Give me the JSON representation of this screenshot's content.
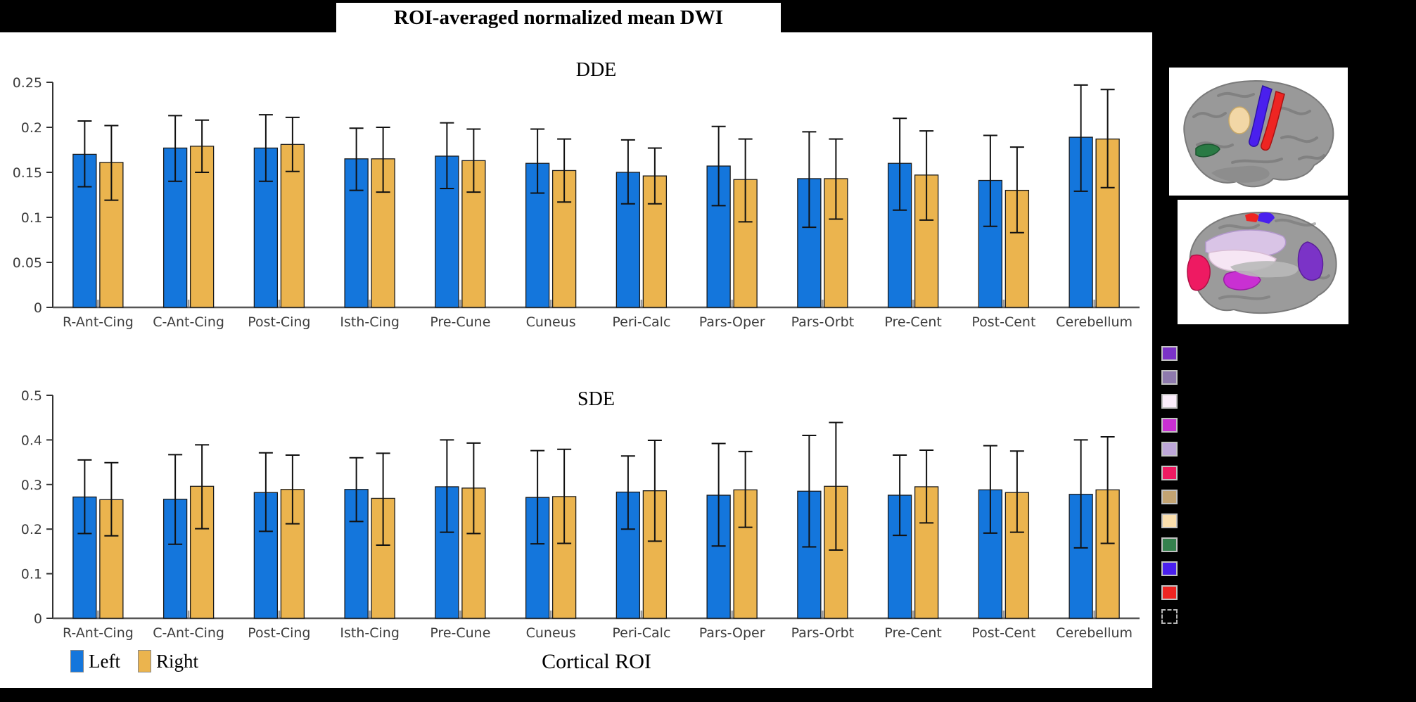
{
  "title": "ROI-averaged normalized mean DWI",
  "xlabel": "Cortical ROI",
  "legend": {
    "items": [
      {
        "label": "Left",
        "color": "#1476DC"
      },
      {
        "label": "Right",
        "color": "#EBB44E"
      }
    ]
  },
  "chart_data": [
    {
      "type": "bar",
      "title": "DDE",
      "ylim": [
        0,
        0.25
      ],
      "yticks": [
        0,
        0.05,
        0.1,
        0.15,
        0.2,
        0.25
      ],
      "categories": [
        "R-Ant-Cing",
        "C-Ant-Cing",
        "Post-Cing",
        "Isth-Cing",
        "Pre-Cune",
        "Cuneus",
        "Peri-Calc",
        "Pars-Oper",
        "Pars-Orbt",
        "Pre-Cent",
        "Post-Cent",
        "Cerebellum"
      ],
      "series": [
        {
          "name": "Left",
          "color": "#1476DC",
          "values": [
            0.17,
            0.177,
            0.177,
            0.165,
            0.168,
            0.16,
            0.15,
            0.157,
            0.143,
            0.16,
            0.141,
            0.189
          ],
          "upper": [
            0.207,
            0.213,
            0.214,
            0.199,
            0.205,
            0.198,
            0.186,
            0.201,
            0.195,
            0.21,
            0.191,
            0.247
          ],
          "lower": [
            0.134,
            0.14,
            0.14,
            0.13,
            0.132,
            0.127,
            0.115,
            0.113,
            0.089,
            0.108,
            0.09,
            0.129
          ]
        },
        {
          "name": "Right",
          "color": "#EBB44E",
          "values": [
            0.161,
            0.179,
            0.181,
            0.165,
            0.163,
            0.152,
            0.146,
            0.142,
            0.143,
            0.147,
            0.13,
            0.187
          ],
          "upper": [
            0.202,
            0.208,
            0.211,
            0.2,
            0.198,
            0.187,
            0.177,
            0.187,
            0.187,
            0.196,
            0.178,
            0.242
          ],
          "lower": [
            0.119,
            0.15,
            0.151,
            0.128,
            0.128,
            0.117,
            0.115,
            0.095,
            0.098,
            0.097,
            0.083,
            0.133
          ]
        }
      ]
    },
    {
      "type": "bar",
      "title": "SDE",
      "ylim": [
        0,
        0.5
      ],
      "yticks": [
        0,
        0.1,
        0.2,
        0.3,
        0.4,
        0.5
      ],
      "categories": [
        "R-Ant-Cing",
        "C-Ant-Cing",
        "Post-Cing",
        "Isth-Cing",
        "Pre-Cune",
        "Cuneus",
        "Peri-Calc",
        "Pars-Oper",
        "Pars-Orbt",
        "Pre-Cent",
        "Post-Cent",
        "Cerebellum"
      ],
      "series": [
        {
          "name": "Left",
          "color": "#1476DC",
          "values": [
            0.272,
            0.267,
            0.282,
            0.289,
            0.295,
            0.271,
            0.283,
            0.276,
            0.285,
            0.276,
            0.288,
            0.278
          ],
          "upper": [
            0.355,
            0.367,
            0.371,
            0.36,
            0.4,
            0.376,
            0.364,
            0.392,
            0.41,
            0.366,
            0.387,
            0.4
          ],
          "lower": [
            0.19,
            0.166,
            0.195,
            0.217,
            0.193,
            0.167,
            0.2,
            0.162,
            0.16,
            0.186,
            0.191,
            0.158
          ]
        },
        {
          "name": "Right",
          "color": "#EBB44E",
          "values": [
            0.266,
            0.296,
            0.289,
            0.269,
            0.292,
            0.273,
            0.286,
            0.288,
            0.296,
            0.295,
            0.282,
            0.288
          ],
          "upper": [
            0.349,
            0.389,
            0.366,
            0.37,
            0.393,
            0.379,
            0.399,
            0.374,
            0.439,
            0.377,
            0.375,
            0.407
          ],
          "lower": [
            0.185,
            0.201,
            0.212,
            0.164,
            0.19,
            0.168,
            0.173,
            0.204,
            0.153,
            0.214,
            0.193,
            0.168
          ]
        }
      ]
    }
  ],
  "roi_legend": {
    "colors": [
      "#7B33C7",
      "#8E7AAD",
      "#FBEDFB",
      "#C930D2",
      "#BDA7D8",
      "#EE1A62",
      "#C3A473",
      "#FBDFAE",
      "#35814E",
      "#4A20EE",
      "#EE2522"
    ],
    "dashed_last": true
  }
}
